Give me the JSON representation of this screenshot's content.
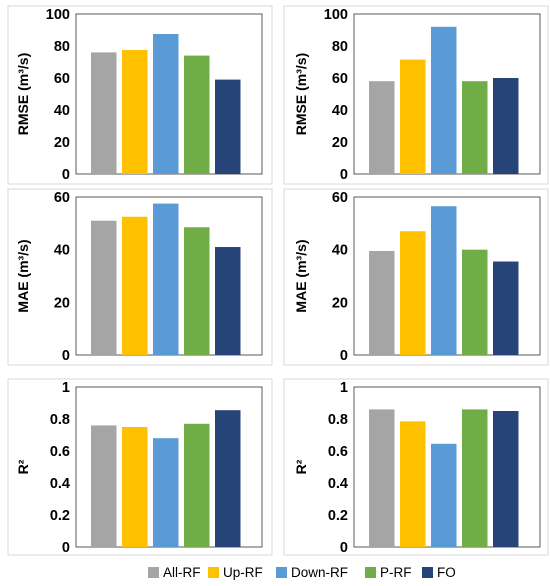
{
  "chart_data": [
    {
      "type": "bar",
      "categories": [
        "All-RF",
        "Up-RF",
        "Down-RF",
        "P-RF",
        "FO"
      ],
      "values": [
        76,
        77.5,
        87.5,
        74,
        59
      ],
      "ylabel": "RMSE (m³/s)",
      "ylim": [
        0,
        100
      ],
      "yticks": [
        "0",
        "20",
        "40",
        "60",
        "80",
        "100"
      ],
      "grid": false
    },
    {
      "type": "bar",
      "categories": [
        "All-RF",
        "Up-RF",
        "Down-RF",
        "P-RF",
        "FO"
      ],
      "values": [
        58,
        71.5,
        92,
        58,
        60
      ],
      "ylabel": "RMSE (m³/s)",
      "ylim": [
        0,
        100
      ],
      "yticks": [
        "0",
        "20",
        "40",
        "60",
        "80",
        "100"
      ],
      "grid": false
    },
    {
      "type": "bar",
      "categories": [
        "All-RF",
        "Up-RF",
        "Down-RF",
        "P-RF",
        "FO"
      ],
      "values": [
        51,
        52.5,
        57.5,
        48.5,
        41
      ],
      "ylabel": "MAE (m³/s)",
      "ylim": [
        0,
        60
      ],
      "yticks": [
        "0",
        "20",
        "40",
        "60"
      ],
      "grid": false
    },
    {
      "type": "bar",
      "categories": [
        "All-RF",
        "Up-RF",
        "Down-RF",
        "P-RF",
        "FO"
      ],
      "values": [
        39.5,
        47,
        56.5,
        40,
        35.5
      ],
      "ylabel": "MAE (m³/s)",
      "ylim": [
        0,
        60
      ],
      "yticks": [
        "0",
        "20",
        "40",
        "60"
      ],
      "grid": false
    },
    {
      "type": "bar",
      "categories": [
        "All-RF",
        "Up-RF",
        "Down-RF",
        "P-RF",
        "FO"
      ],
      "values": [
        0.76,
        0.75,
        0.68,
        0.77,
        0.855
      ],
      "ylabel": "R²",
      "ylim": [
        0,
        1
      ],
      "yticks": [
        "0",
        "0.2",
        "0.4",
        "0.6",
        "0.8",
        "1"
      ],
      "grid": false
    },
    {
      "type": "bar",
      "categories": [
        "All-RF",
        "Up-RF",
        "Down-RF",
        "P-RF",
        "FO"
      ],
      "values": [
        0.86,
        0.785,
        0.645,
        0.86,
        0.85
      ],
      "ylabel": "R²",
      "ylim": [
        0,
        1
      ],
      "yticks": [
        "0",
        "0.2",
        "0.4",
        "0.6",
        "0.8",
        "1"
      ],
      "grid": false
    }
  ],
  "legend": {
    "placement": "bottom",
    "items": [
      {
        "label": "All-RF",
        "color": "#A5A5A5"
      },
      {
        "label": "Up-RF",
        "color": "#FFC000"
      },
      {
        "label": "Down-RF",
        "color": "#5B9BD5"
      },
      {
        "label": "P-RF",
        "color": "#70AD47"
      },
      {
        "label": "FO",
        "color": "#264478"
      }
    ]
  }
}
